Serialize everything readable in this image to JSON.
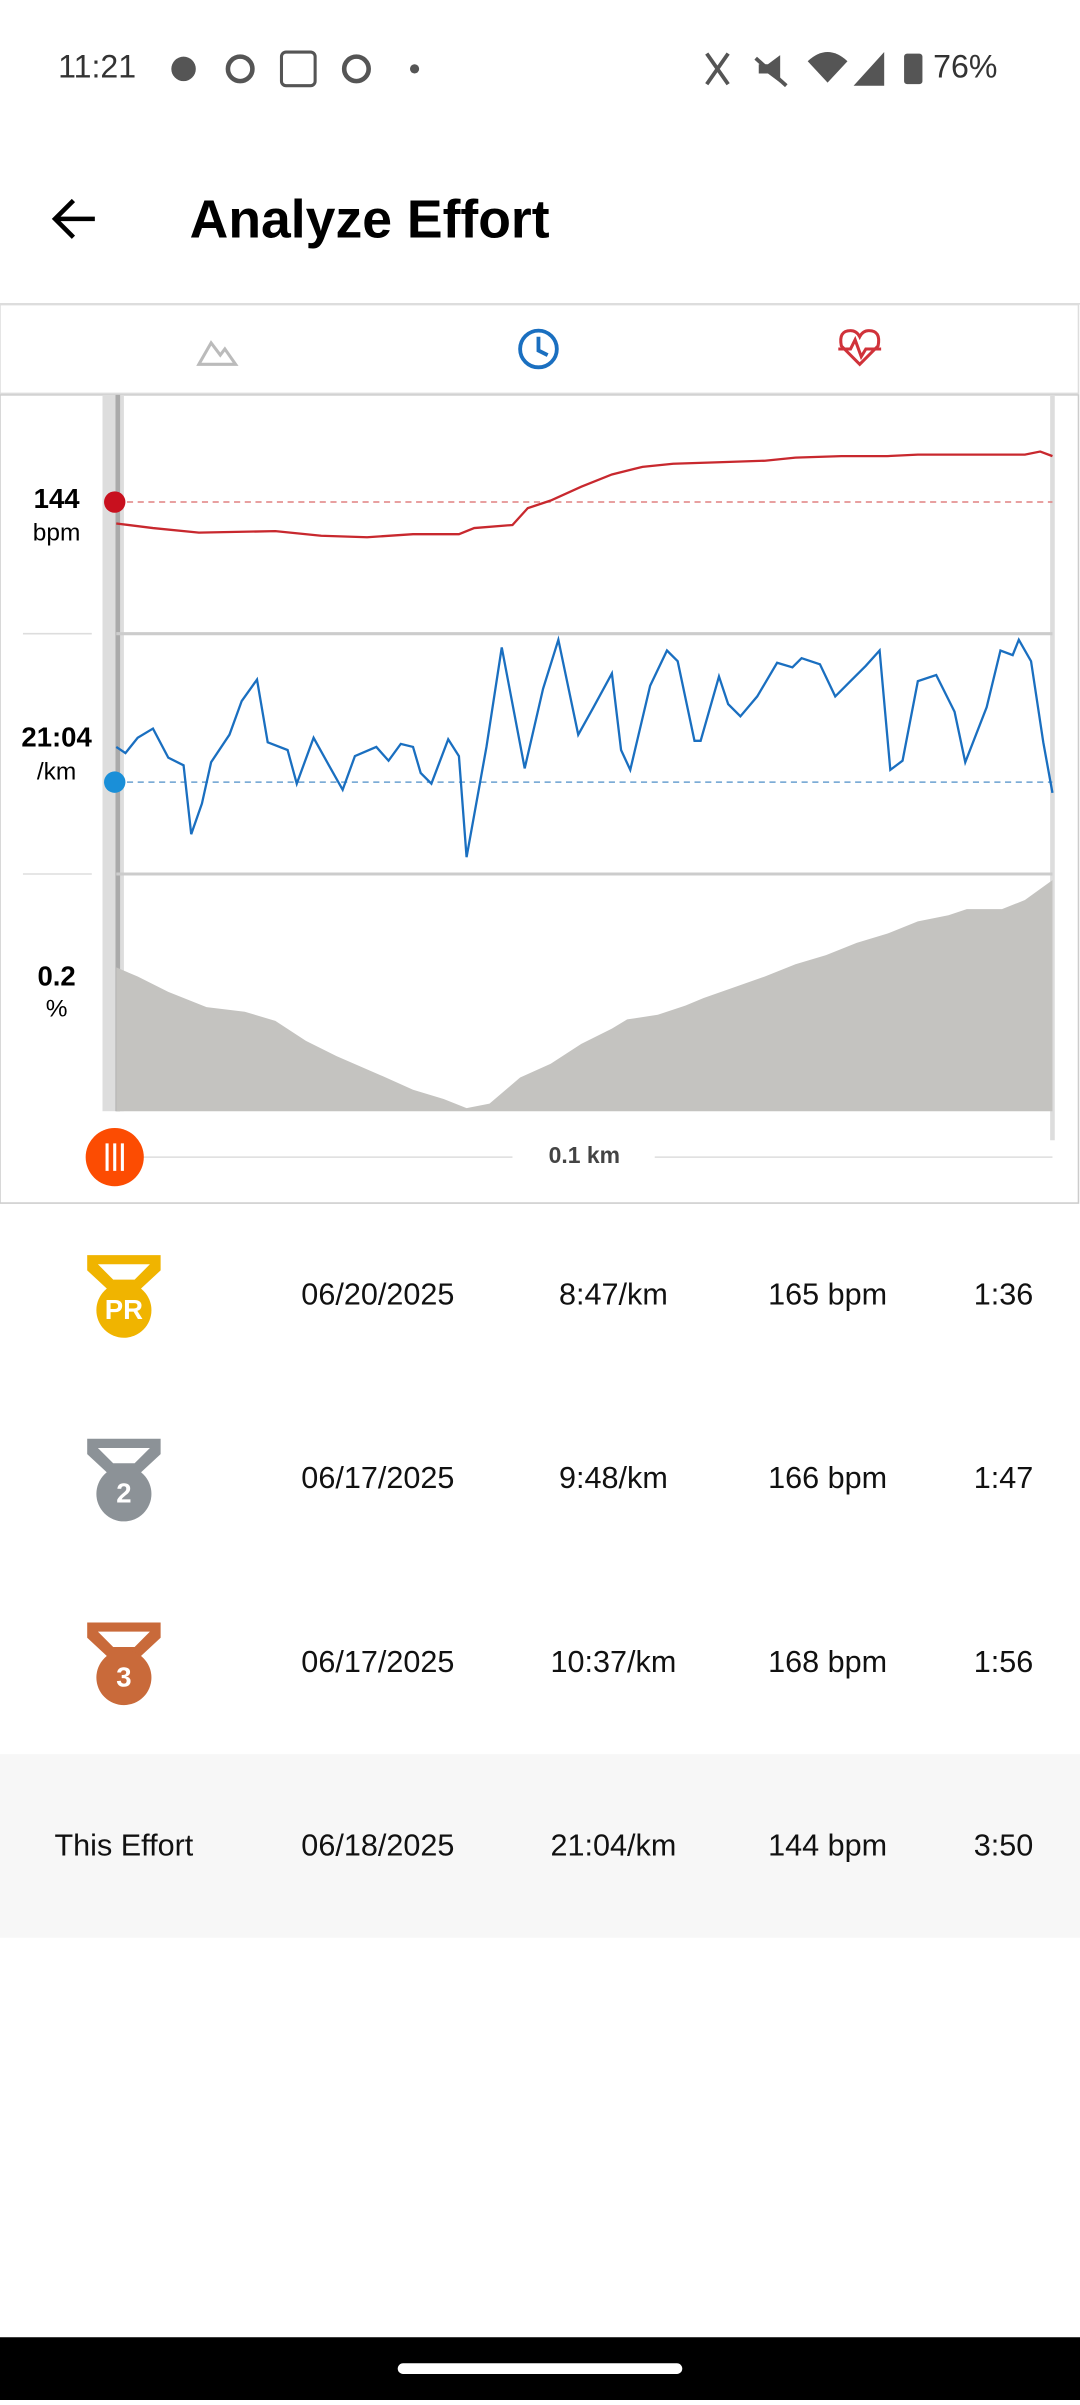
{
  "status_bar": {
    "time": "11:21",
    "battery": "76%"
  },
  "header": {
    "title": "Analyze Effort"
  },
  "chart": {
    "heart_rate": {
      "value": "144",
      "unit": "bpm"
    },
    "pace": {
      "value": "21:04",
      "unit": "/km"
    },
    "grade": {
      "value": "0.2",
      "unit": "%"
    },
    "distance": "0.1 km"
  },
  "table": {
    "rows": [
      {
        "badge": "PR",
        "date": "06/20/2025",
        "pace": "8:47/km",
        "heart_rate": "165 bpm",
        "time": "1:36"
      },
      {
        "badge": "2",
        "date": "06/17/2025",
        "pace": "9:48/km",
        "heart_rate": "166 bpm",
        "time": "1:47"
      },
      {
        "badge": "3",
        "date": "06/17/2025",
        "pace": "10:37/km",
        "heart_rate": "168 bpm",
        "time": "1:56"
      },
      {
        "label": "This Effort",
        "date": "06/18/2025",
        "pace": "21:04/km",
        "heart_rate": "144 bpm",
        "time": "3:50"
      }
    ]
  }
}
